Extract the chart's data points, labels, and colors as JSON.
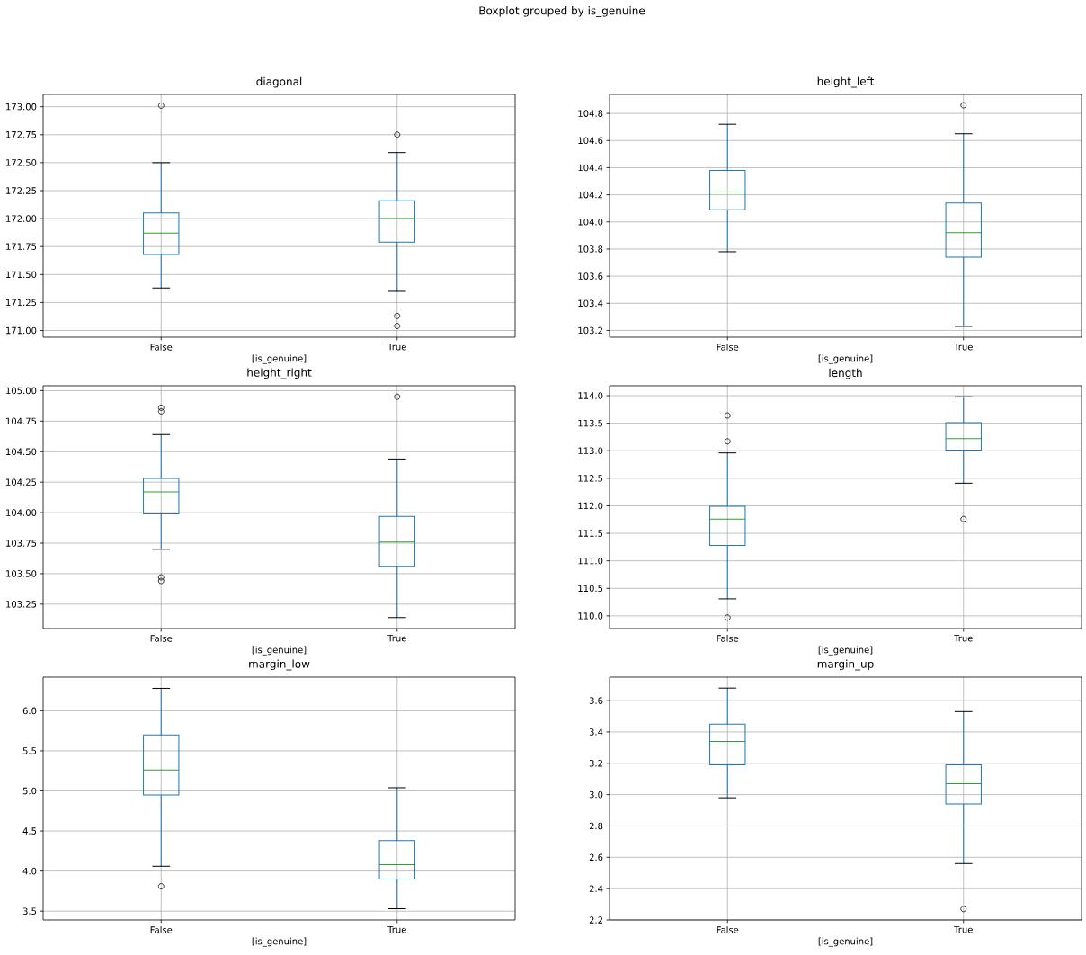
{
  "chart_data": [
    {
      "type": "other",
      "title": "Boxplot grouped by is_genuine"
    },
    {
      "type": "box",
      "title": "diagonal",
      "xlabel": "[is_genuine]",
      "categories": [
        "False",
        "True"
      ],
      "grid": true,
      "ylim": [
        170.94,
        173.11
      ],
      "yticks": [
        {
          "value": 171,
          "label": "171.00"
        },
        171.25,
        {
          "value": 171.5,
          "label": "171.50"
        },
        171.75,
        {
          "value": 172,
          "label": "172.00"
        },
        172.25,
        {
          "value": 172.5,
          "label": "172.50"
        },
        172.75,
        {
          "value": 173,
          "label": "173.00"
        }
      ],
      "series": [
        {
          "color": "#1f77b4",
          "boxes": [
            {
              "low": 171.38,
              "q1": 171.68,
              "median": 171.87,
              "q3": 172.05,
              "high": 172.5,
              "outliers": [
                173.01
              ]
            },
            {
              "low": 171.35,
              "q1": 171.79,
              "median": 172.0,
              "q3": 172.16,
              "high": 172.59,
              "outliers": [
                172.75,
                171.13,
                171.04
              ]
            }
          ]
        }
      ]
    },
    {
      "type": "box",
      "title": "height_left",
      "xlabel": "[is_genuine]",
      "categories": [
        "False",
        "True"
      ],
      "grid": true,
      "ylim": [
        103.15,
        104.94
      ],
      "yticks": [
        103.2,
        103.4,
        103.6,
        103.8,
        {
          "value": 104,
          "label": "104.0"
        },
        104.2,
        104.4,
        104.6,
        104.8
      ],
      "series": [
        {
          "color": "#1f77b4",
          "boxes": [
            {
              "low": 103.78,
              "q1": 104.09,
              "median": 104.22,
              "q3": 104.38,
              "high": 104.72
            },
            {
              "low": 103.23,
              "q1": 103.74,
              "median": 103.92,
              "q3": 104.14,
              "high": 104.65,
              "outliers": [
                104.86
              ]
            }
          ]
        }
      ]
    },
    {
      "type": "box",
      "title": "height_right",
      "xlabel": "[is_genuine]",
      "categories": [
        "False",
        "True"
      ],
      "grid": true,
      "ylim": [
        103.05,
        105.04
      ],
      "yticks": [
        103.25,
        {
          "value": 103.5,
          "label": "103.50"
        },
        103.75,
        {
          "value": 104,
          "label": "104.00"
        },
        104.25,
        {
          "value": 104.5,
          "label": "104.50"
        },
        104.75,
        {
          "value": 105,
          "label": "105.00"
        }
      ],
      "series": [
        {
          "color": "#1f77b4",
          "boxes": [
            {
              "low": 103.7,
              "q1": 103.99,
              "median": 104.17,
              "q3": 104.28,
              "high": 104.64,
              "outliers": [
                104.86,
                104.83,
                103.47,
                103.44
              ]
            },
            {
              "low": 103.14,
              "q1": 103.56,
              "median": 103.76,
              "q3": 103.97,
              "high": 104.44,
              "outliers": [
                104.95
              ]
            }
          ]
        }
      ]
    },
    {
      "type": "box",
      "title": "length",
      "xlabel": "[is_genuine]",
      "categories": [
        "False",
        "True"
      ],
      "grid": true,
      "ylim": [
        109.77,
        114.18
      ],
      "yticks": [
        {
          "value": 110,
          "label": "110.0"
        },
        110.5,
        {
          "value": 111,
          "label": "111.0"
        },
        111.5,
        {
          "value": 112,
          "label": "112.0"
        },
        112.5,
        {
          "value": 113,
          "label": "113.0"
        },
        113.5,
        {
          "value": 114,
          "label": "114.0"
        }
      ],
      "series": [
        {
          "color": "#1f77b4",
          "boxes": [
            {
              "low": 110.31,
              "q1": 111.28,
              "median": 111.76,
              "q3": 111.99,
              "high": 112.96,
              "outliers": [
                113.64,
                113.17,
                109.97
              ]
            },
            {
              "low": 112.41,
              "q1": 113.01,
              "median": 113.22,
              "q3": 113.51,
              "high": 113.98,
              "outliers": [
                111.76
              ]
            }
          ]
        }
      ]
    },
    {
      "type": "box",
      "title": "margin_low",
      "xlabel": "[is_genuine]",
      "categories": [
        "False",
        "True"
      ],
      "grid": true,
      "ylim": [
        3.39,
        6.42
      ],
      "yticks": [
        3.5,
        {
          "value": 4,
          "label": "4.0"
        },
        4.5,
        {
          "value": 5,
          "label": "5.0"
        },
        5.5,
        {
          "value": 6,
          "label": "6.0"
        }
      ],
      "series": [
        {
          "color": "#1f77b4",
          "boxes": [
            {
              "low": 4.06,
              "q1": 4.95,
              "median": 5.26,
              "q3": 5.7,
              "high": 6.28,
              "outliers": [
                3.81
              ]
            },
            {
              "low": 3.53,
              "q1": 3.9,
              "median": 4.08,
              "q3": 4.38,
              "high": 5.04
            }
          ]
        }
      ]
    },
    {
      "type": "box",
      "title": "margin_up",
      "xlabel": "[is_genuine]",
      "categories": [
        "False",
        "True"
      ],
      "grid": true,
      "ylim": [
        2.2,
        3.75
      ],
      "yticks": [
        2.2,
        2.4,
        2.6,
        2.8,
        {
          "value": 3,
          "label": "3.0"
        },
        3.2,
        3.4,
        3.6
      ],
      "series": [
        {
          "color": "#1f77b4",
          "boxes": [
            {
              "low": 2.98,
              "q1": 3.19,
              "median": 3.34,
              "q3": 3.45,
              "high": 3.68
            },
            {
              "low": 2.56,
              "q1": 2.94,
              "median": 3.07,
              "q3": 3.19,
              "high": 3.53,
              "outliers": [
                2.27
              ]
            }
          ]
        }
      ]
    }
  ]
}
